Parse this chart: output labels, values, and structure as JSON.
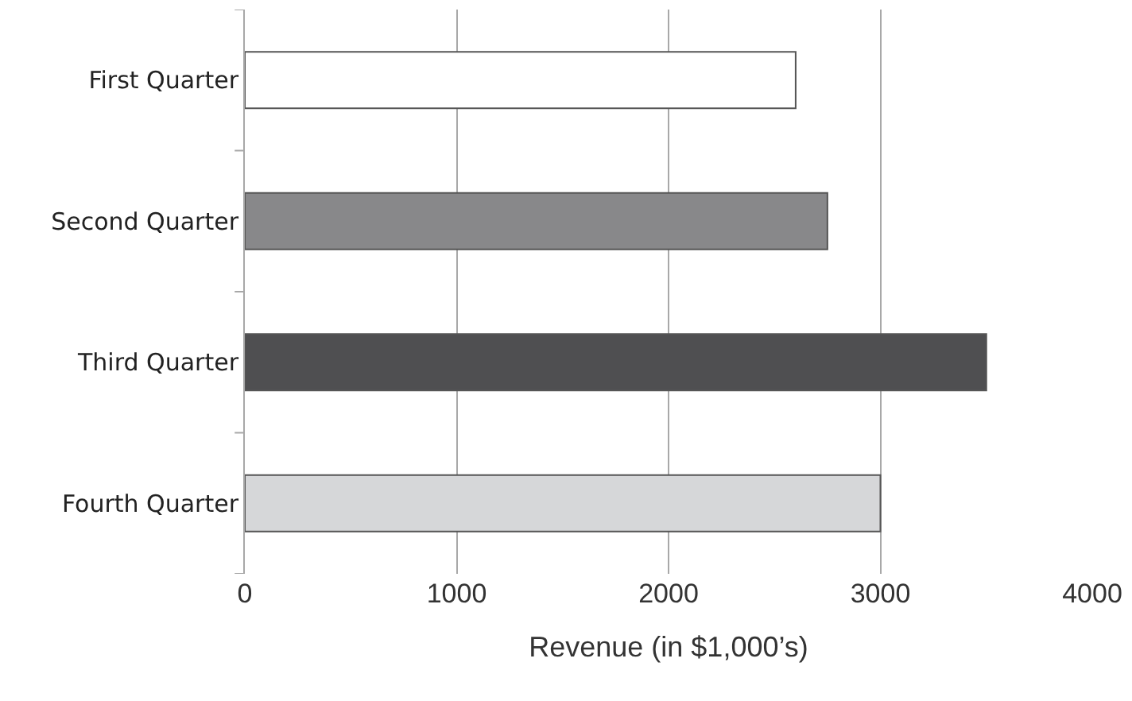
{
  "chart_data": {
    "type": "bar",
    "orientation": "horizontal",
    "xlabel": "Revenue (in $1,000’s)",
    "categories": [
      "First Quarter",
      "Second Quarter",
      "Third Quarter",
      "Fourth Quarter"
    ],
    "values": [
      2600,
      2750,
      3500,
      3000
    ],
    "colors": [
      "#ffffff",
      "#88888a",
      "#4f4f51",
      "#d6d7d9"
    ],
    "xlim": [
      0,
      4000
    ],
    "xticks": [
      0,
      1000,
      2000,
      3000,
      4000
    ],
    "grid": "x"
  }
}
